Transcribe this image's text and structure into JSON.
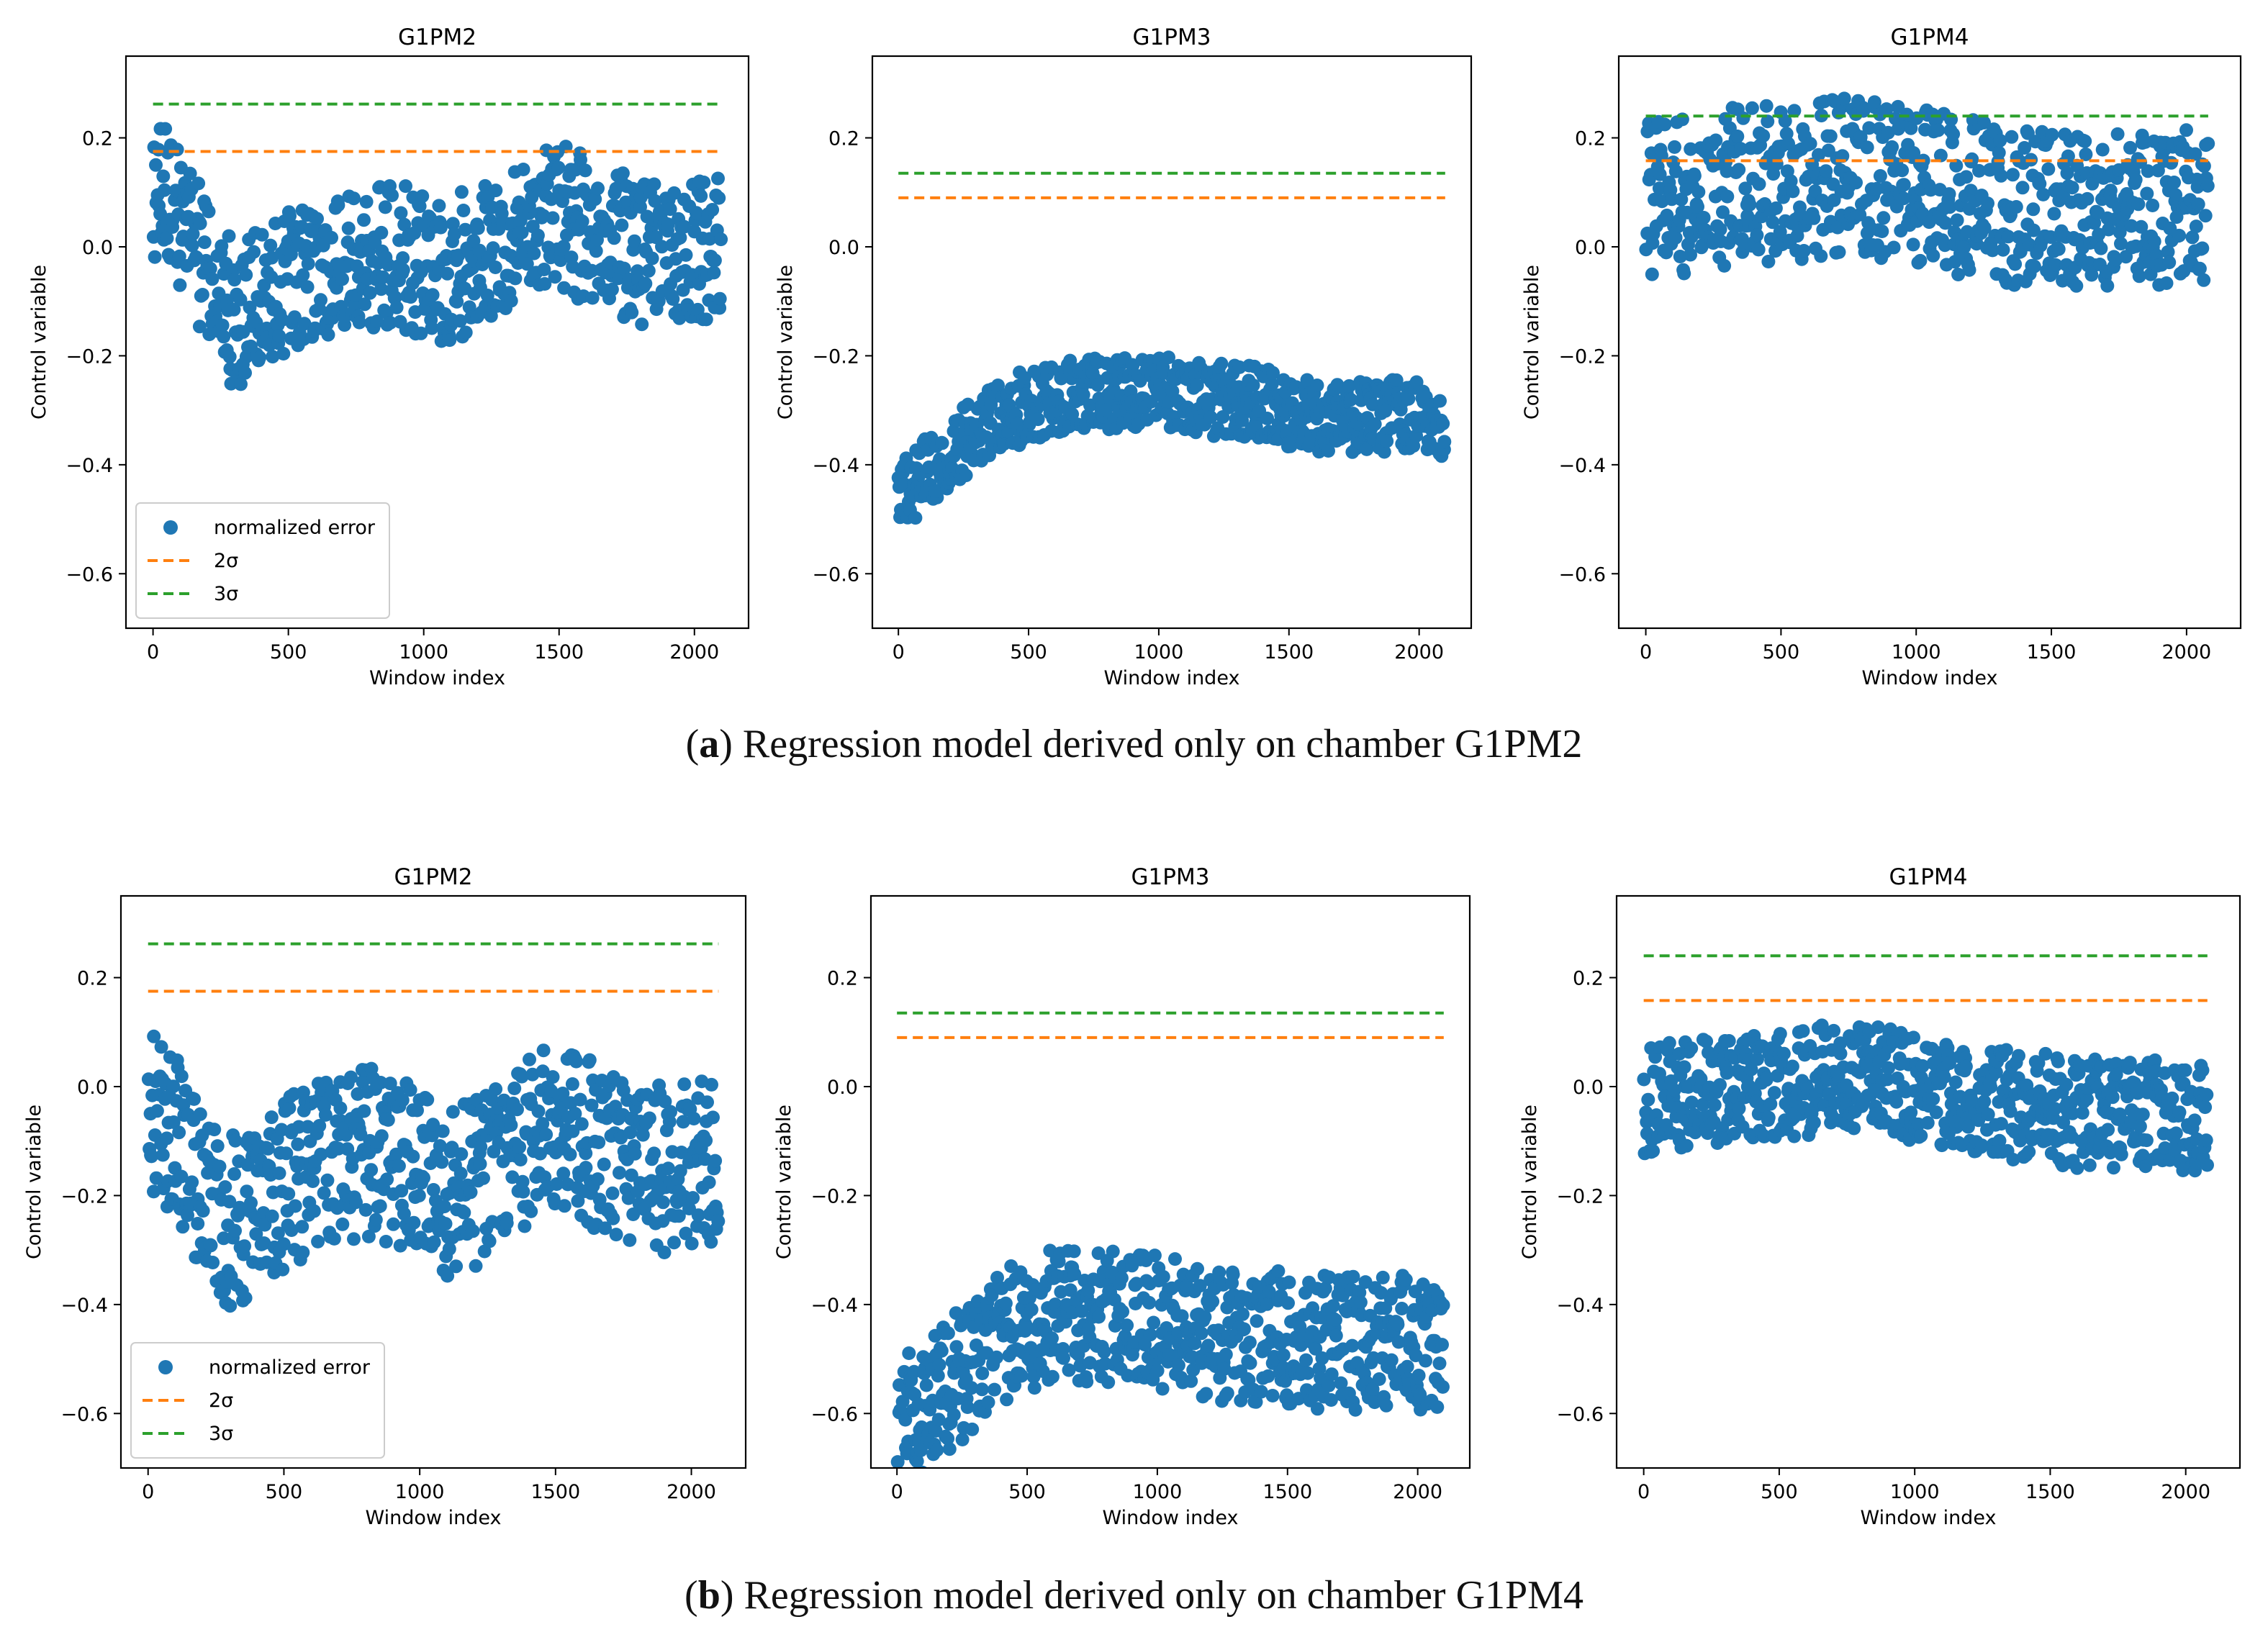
{
  "chart_data": [
    {
      "type": "scatter",
      "title": "G1PM2",
      "xlabel": "Window index",
      "ylabel": "Control variable",
      "xlim": [
        -100,
        2200
      ],
      "ylim": [
        -0.7,
        0.35
      ],
      "xticks": [
        0,
        500,
        1000,
        1500,
        2000
      ],
      "yticks": [
        -0.6,
        -0.4,
        -0.2,
        0.0,
        0.2
      ],
      "sigma2": 0.175,
      "sigma3": 0.262,
      "n_points": 2100,
      "legend": true,
      "series": [
        {
          "name": "normalized error",
          "color": "#1f77b4",
          "trend": [
            [
              0,
              0.1
            ],
            [
              100,
              0.06
            ],
            [
              200,
              -0.05
            ],
            [
              300,
              -0.13
            ],
            [
              400,
              -0.1
            ],
            [
              500,
              -0.06
            ],
            [
              600,
              -0.06
            ],
            [
              700,
              -0.04
            ],
            [
              800,
              -0.02
            ],
            [
              900,
              -0.02
            ],
            [
              1000,
              -0.03
            ],
            [
              1100,
              -0.05
            ],
            [
              1200,
              -0.01
            ],
            [
              1300,
              0.01
            ],
            [
              1400,
              0.04
            ],
            [
              1500,
              0.06
            ],
            [
              1600,
              0.03
            ],
            [
              1700,
              0.01
            ],
            [
              1800,
              -0.01
            ],
            [
              1900,
              -0.02
            ],
            [
              2000,
              0.0
            ],
            [
              2100,
              -0.01
            ]
          ],
          "spread": 0.12
        }
      ]
    },
    {
      "type": "scatter",
      "title": "G1PM3",
      "xlabel": "Window index",
      "ylabel": "Control variable",
      "xlim": [
        -100,
        2200
      ],
      "ylim": [
        -0.7,
        0.35
      ],
      "xticks": [
        0,
        500,
        1000,
        1500,
        2000
      ],
      "yticks": [
        -0.6,
        -0.4,
        -0.2,
        0.0,
        0.2
      ],
      "sigma2": 0.09,
      "sigma3": 0.135,
      "n_points": 2100,
      "legend": false,
      "series": [
        {
          "name": "normalized error",
          "color": "#1f77b4",
          "trend": [
            [
              0,
              -0.45
            ],
            [
              100,
              -0.42
            ],
            [
              200,
              -0.38
            ],
            [
              300,
              -0.34
            ],
            [
              400,
              -0.31
            ],
            [
              500,
              -0.29
            ],
            [
              600,
              -0.28
            ],
            [
              700,
              -0.27
            ],
            [
              800,
              -0.27
            ],
            [
              900,
              -0.27
            ],
            [
              1000,
              -0.27
            ],
            [
              1100,
              -0.27
            ],
            [
              1200,
              -0.28
            ],
            [
              1300,
              -0.28
            ],
            [
              1400,
              -0.29
            ],
            [
              1500,
              -0.3
            ],
            [
              1600,
              -0.31
            ],
            [
              1700,
              -0.31
            ],
            [
              1800,
              -0.31
            ],
            [
              1900,
              -0.31
            ],
            [
              2000,
              -0.31
            ],
            [
              2100,
              -0.32
            ]
          ],
          "spread": 0.06
        }
      ]
    },
    {
      "type": "scatter",
      "title": "G1PM4",
      "xlabel": "Window index",
      "ylabel": "Control variable",
      "xlim": [
        -100,
        2200
      ],
      "ylim": [
        -0.7,
        0.35
      ],
      "xticks": [
        0,
        500,
        1000,
        1500,
        2000
      ],
      "yticks": [
        -0.6,
        -0.4,
        -0.2,
        0.0,
        0.2
      ],
      "sigma2": 0.158,
      "sigma3": 0.24,
      "n_points": 2080,
      "legend": false,
      "series": [
        {
          "name": "normalized error",
          "color": "#1f77b4",
          "trend": [
            [
              0,
              0.08
            ],
            [
              100,
              0.09
            ],
            [
              200,
              0.1
            ],
            [
              300,
              0.11
            ],
            [
              400,
              0.11
            ],
            [
              500,
              0.12
            ],
            [
              600,
              0.12
            ],
            [
              700,
              0.13
            ],
            [
              800,
              0.13
            ],
            [
              900,
              0.12
            ],
            [
              1000,
              0.11
            ],
            [
              1100,
              0.1
            ],
            [
              1200,
              0.09
            ],
            [
              1300,
              0.08
            ],
            [
              1400,
              0.07
            ],
            [
              1500,
              0.07
            ],
            [
              1600,
              0.07
            ],
            [
              1700,
              0.07
            ],
            [
              1800,
              0.07
            ],
            [
              1900,
              0.07
            ],
            [
              2000,
              0.07
            ],
            [
              2080,
              0.07
            ]
          ],
          "spread": 0.13
        }
      ]
    },
    {
      "type": "scatter",
      "title": "G1PM2",
      "xlabel": "Window index",
      "ylabel": "Control variable",
      "xlim": [
        -100,
        2200
      ],
      "ylim": [
        -0.7,
        0.35
      ],
      "xticks": [
        0,
        500,
        1000,
        1500,
        2000
      ],
      "yticks": [
        -0.6,
        -0.4,
        -0.2,
        0.0,
        0.2
      ],
      "sigma2": 0.175,
      "sigma3": 0.262,
      "n_points": 2100,
      "legend": true,
      "series": [
        {
          "name": "normalized error",
          "color": "#1f77b4",
          "trend": [
            [
              0,
              -0.05
            ],
            [
              100,
              -0.08
            ],
            [
              200,
              -0.2
            ],
            [
              300,
              -0.25
            ],
            [
              400,
              -0.22
            ],
            [
              500,
              -0.18
            ],
            [
              600,
              -0.15
            ],
            [
              700,
              -0.15
            ],
            [
              800,
              -0.12
            ],
            [
              900,
              -0.14
            ],
            [
              1000,
              -0.15
            ],
            [
              1100,
              -0.2
            ],
            [
              1200,
              -0.18
            ],
            [
              1300,
              -0.14
            ],
            [
              1400,
              -0.1
            ],
            [
              1500,
              -0.08
            ],
            [
              1600,
              -0.1
            ],
            [
              1700,
              -0.12
            ],
            [
              1800,
              -0.14
            ],
            [
              1900,
              -0.15
            ],
            [
              2000,
              -0.14
            ],
            [
              2100,
              -0.15
            ]
          ],
          "spread": 0.14
        }
      ]
    },
    {
      "type": "scatter",
      "title": "G1PM3",
      "xlabel": "Window index",
      "ylabel": "Control variable",
      "xlim": [
        -100,
        2200
      ],
      "ylim": [
        -0.7,
        0.35
      ],
      "xticks": [
        0,
        500,
        1000,
        1500,
        2000
      ],
      "yticks": [
        -0.6,
        -0.4,
        -0.2,
        0.0,
        0.2
      ],
      "sigma2": 0.09,
      "sigma3": 0.135,
      "n_points": 2100,
      "legend": false,
      "series": [
        {
          "name": "normalized error",
          "color": "#1f77b4",
          "trend": [
            [
              0,
              -0.62
            ],
            [
              100,
              -0.6
            ],
            [
              200,
              -0.55
            ],
            [
              300,
              -0.5
            ],
            [
              400,
              -0.46
            ],
            [
              500,
              -0.44
            ],
            [
              600,
              -0.42
            ],
            [
              700,
              -0.42
            ],
            [
              800,
              -0.42
            ],
            [
              900,
              -0.42
            ],
            [
              1000,
              -0.43
            ],
            [
              1100,
              -0.44
            ],
            [
              1200,
              -0.45
            ],
            [
              1300,
              -0.46
            ],
            [
              1400,
              -0.46
            ],
            [
              1500,
              -0.46
            ],
            [
              1600,
              -0.47
            ],
            [
              1700,
              -0.47
            ],
            [
              1800,
              -0.47
            ],
            [
              1900,
              -0.47
            ],
            [
              2000,
              -0.47
            ],
            [
              2100,
              -0.47
            ]
          ],
          "spread": 0.11
        }
      ]
    },
    {
      "type": "scatter",
      "title": "G1PM4",
      "xlabel": "Window index",
      "ylabel": "Control variable",
      "xlim": [
        -100,
        2200
      ],
      "ylim": [
        -0.7,
        0.35
      ],
      "xticks": [
        0,
        500,
        1000,
        1500,
        2000
      ],
      "yticks": [
        -0.6,
        -0.4,
        -0.2,
        0.0,
        0.2
      ],
      "sigma2": 0.158,
      "sigma3": 0.24,
      "n_points": 2080,
      "legend": false,
      "series": [
        {
          "name": "normalized error",
          "color": "#1f77b4",
          "trend": [
            [
              0,
              -0.03
            ],
            [
              100,
              -0.02
            ],
            [
              200,
              -0.01
            ],
            [
              300,
              0.0
            ],
            [
              400,
              0.0
            ],
            [
              500,
              0.0
            ],
            [
              600,
              0.01
            ],
            [
              700,
              0.02
            ],
            [
              800,
              0.02
            ],
            [
              900,
              0.01
            ],
            [
              1000,
              0.0
            ],
            [
              1100,
              -0.01
            ],
            [
              1200,
              -0.02
            ],
            [
              1300,
              -0.03
            ],
            [
              1400,
              -0.04
            ],
            [
              1500,
              -0.04
            ],
            [
              1600,
              -0.05
            ],
            [
              1700,
              -0.05
            ],
            [
              1800,
              -0.05
            ],
            [
              1900,
              -0.05
            ],
            [
              2000,
              -0.06
            ],
            [
              2080,
              -0.06
            ]
          ],
          "spread": 0.09
        }
      ]
    }
  ],
  "legend": {
    "point_label": "normalized error",
    "sigma2_label": "2σ",
    "sigma3_label": "3σ",
    "sigma2_color": "#ff7f0e",
    "sigma3_color": "#2ca02c"
  },
  "captions": {
    "a_letter": "a",
    "a_text": " Regression model derived only on chamber G1PM2",
    "b_letter": "b",
    "b_text": " Regression model derived only on chamber G1PM4"
  }
}
